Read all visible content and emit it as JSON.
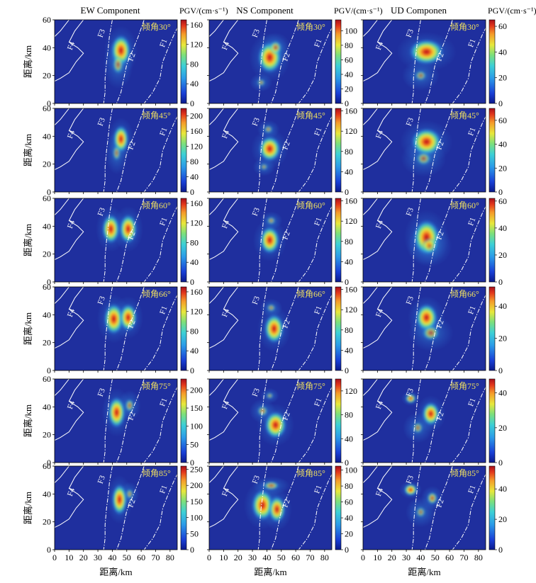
{
  "figure": {
    "column_titles": [
      "EW Component",
      "NS Component",
      "UD Componen"
    ],
    "colorbar_label": "PGV/(cm·s⁻¹)",
    "panel_label_prefix": "倾角",
    "y_axis_label": "距离/km",
    "x_axis_label": "距离/km",
    "fault_labels": [
      "F1",
      "F2",
      "F3",
      "F4"
    ],
    "colors": {
      "text_annotation": "#f0e060",
      "fault_line": "#ffffff",
      "background_low": "#1f2f9e",
      "high": "#c81e14"
    }
  },
  "chart_data": {
    "type": "heatmap",
    "x_range": [
      0,
      85
    ],
    "y_range": [
      0,
      60
    ],
    "x_ticks": [
      0,
      10,
      20,
      30,
      40,
      50,
      60,
      70,
      80
    ],
    "y_ticks": [
      0,
      20,
      40,
      60
    ],
    "rows": [
      {
        "dip_label": "30°",
        "panels": [
          {
            "component": "EW",
            "colorbar_ticks": [
              0,
              40,
              80,
              120,
              160
            ],
            "vmax": 170,
            "blobs": [
              [
                46,
                38,
                4.5,
                8,
                1.0
              ],
              [
                44,
                28,
                4,
                8,
                0.35
              ]
            ]
          },
          {
            "component": "NS",
            "colorbar_ticks": [
              0,
              20,
              40,
              60,
              80,
              100
            ],
            "vmax": 115,
            "blobs": [
              [
                42,
                33,
                5.5,
                8,
                1.0
              ],
              [
                46,
                40,
                4,
                5,
                0.5
              ],
              [
                36,
                15,
                3,
                3,
                0.3
              ]
            ]
          },
          {
            "component": "UD",
            "colorbar_ticks": [
              0,
              20,
              40,
              60
            ],
            "vmax": 65,
            "blobs": [
              [
                44,
                37,
                8,
                6.5,
                1.0
              ],
              [
                40,
                20,
                5,
                5,
                0.25
              ]
            ]
          }
        ]
      },
      {
        "dip_label": "45°",
        "panels": [
          {
            "component": "EW",
            "colorbar_ticks": [
              0,
              40,
              80,
              120,
              160,
              200
            ],
            "vmax": 220,
            "blobs": [
              [
                46,
                38,
                3.5,
                7,
                1.0
              ],
              [
                43,
                28,
                3,
                7,
                0.3
              ]
            ]
          },
          {
            "component": "NS",
            "colorbar_ticks": [
              0,
              40,
              80,
              120,
              160
            ],
            "vmax": 165,
            "blobs": [
              [
                42,
                31,
                5,
                6.5,
                1.0
              ],
              [
                41,
                45,
                3,
                3,
                0.35
              ],
              [
                38,
                18,
                3,
                3,
                0.25
              ]
            ]
          },
          {
            "component": "UD",
            "colorbar_ticks": [
              0,
              20,
              40,
              60
            ],
            "vmax": 70,
            "blobs": [
              [
                44,
                36,
                7,
                7,
                1.0
              ],
              [
                42,
                24,
                6,
                6,
                0.3
              ]
            ]
          }
        ]
      },
      {
        "dip_label": "60°",
        "panels": [
          {
            "component": "EW",
            "colorbar_ticks": [
              0,
              40,
              80,
              120,
              160
            ],
            "vmax": 170,
            "blobs": [
              [
                39,
                38,
                4,
                7.5,
                1.0
              ],
              [
                51,
                38,
                4,
                7.5,
                1.0
              ]
            ]
          },
          {
            "component": "NS",
            "colorbar_ticks": [
              0,
              40,
              80,
              120,
              160
            ],
            "vmax": 165,
            "blobs": [
              [
                42,
                30,
                4.5,
                7,
                1.0
              ],
              [
                43,
                44,
                3,
                3,
                0.35
              ]
            ]
          },
          {
            "component": "UD",
            "colorbar_ticks": [
              0,
              20,
              40,
              60
            ],
            "vmax": 62,
            "blobs": [
              [
                44,
                32,
                6,
                9,
                1.0
              ],
              [
                46,
                26,
                6,
                7,
                0.35
              ]
            ]
          }
        ]
      },
      {
        "dip_label": "66°",
        "panels": [
          {
            "component": "EW",
            "colorbar_ticks": [
              0,
              40,
              80,
              120,
              160
            ],
            "vmax": 170,
            "blobs": [
              [
                41,
                37,
                4.5,
                8,
                1.0
              ],
              [
                51,
                38,
                4,
                7,
                1.0
              ]
            ]
          },
          {
            "component": "NS",
            "colorbar_ticks": [
              0,
              40,
              80,
              120,
              160
            ],
            "vmax": 165,
            "blobs": [
              [
                45,
                30,
                4.5,
                7.5,
                1.0
              ],
              [
                43,
                45,
                3,
                3,
                0.35
              ]
            ]
          },
          {
            "component": "UD",
            "colorbar_ticks": [
              0,
              20,
              40
            ],
            "vmax": 52,
            "blobs": [
              [
                44,
                38,
                5,
                7,
                1.0
              ],
              [
                47,
                27,
                6,
                6,
                0.4
              ]
            ]
          }
        ]
      },
      {
        "dip_label": "75°",
        "panels": [
          {
            "component": "EW",
            "colorbar_ticks": [
              0,
              50,
              100,
              150,
              200
            ],
            "vmax": 230,
            "blobs": [
              [
                43,
                36,
                4,
                8,
                1.0
              ],
              [
                52,
                41,
                3,
                5,
                0.4
              ]
            ]
          },
          {
            "component": "NS",
            "colorbar_ticks": [
              0,
              40,
              80,
              120
            ],
            "vmax": 140,
            "blobs": [
              [
                46,
                27,
                5,
                7,
                1.0
              ],
              [
                37,
                37,
                3.5,
                4,
                0.4
              ],
              [
                42,
                48,
                2.5,
                2.5,
                0.3
              ]
            ]
          },
          {
            "component": "UD",
            "colorbar_ticks": [
              0,
              20,
              40
            ],
            "vmax": 48,
            "blobs": [
              [
                33,
                46,
                2.5,
                2.5,
                0.9
              ],
              [
                47,
                35,
                4,
                6,
                1.0
              ],
              [
                38,
                25,
                4,
                5,
                0.3
              ]
            ]
          }
        ]
      },
      {
        "dip_label": "85°",
        "panels": [
          {
            "component": "EW",
            "colorbar_ticks": [
              0,
              50,
              100,
              150,
              200,
              250
            ],
            "vmax": 260,
            "blobs": [
              [
                45,
                36,
                3.5,
                8,
                1.0
              ],
              [
                52,
                40,
                2.5,
                4,
                0.35
              ]
            ]
          },
          {
            "component": "NS",
            "colorbar_ticks": [
              0,
              20,
              40,
              60,
              80,
              100
            ],
            "vmax": 105,
            "blobs": [
              [
                37,
                32,
                5,
                8,
                1.0
              ],
              [
                47,
                29,
                4,
                7,
                0.95
              ],
              [
                43,
                46,
                5,
                3,
                0.5
              ]
            ]
          },
          {
            "component": "UD",
            "colorbar_ticks": [
              0,
              20,
              40
            ],
            "vmax": 55,
            "blobs": [
              [
                33,
                43,
                3,
                3,
                1.0
              ],
              [
                48,
                37,
                3,
                4,
                0.6
              ],
              [
                40,
                27,
                4,
                5,
                0.25
              ]
            ]
          }
        ]
      }
    ]
  }
}
